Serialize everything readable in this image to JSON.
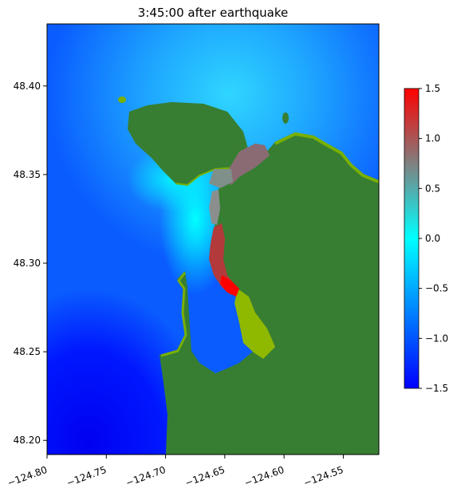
{
  "chart_data": {
    "type": "heatmap",
    "title": "3:45:00 after earthquake",
    "xlabel": "",
    "ylabel": "",
    "xlim": [
      -124.8,
      -124.52
    ],
    "ylim": [
      48.192,
      48.435
    ],
    "x_ticks": [
      -124.8,
      -124.75,
      -124.7,
      -124.65,
      -124.6,
      -124.55
    ],
    "x_tick_labels": [
      "−124.80",
      "−124.75",
      "−124.70",
      "−124.65",
      "−124.60",
      "−124.55"
    ],
    "y_ticks": [
      48.2,
      48.25,
      48.3,
      48.35,
      48.4
    ],
    "y_tick_labels": [
      "48.20",
      "48.25",
      "48.30",
      "48.35",
      "48.40"
    ],
    "colorbar": {
      "range": [
        -1.5,
        1.5
      ],
      "ticks": [
        -1.5,
        -1.0,
        -0.5,
        0.0,
        0.5,
        1.0,
        1.5
      ],
      "tick_labels": [
        "−1.5",
        "−1.0",
        "−0.5",
        "0.0",
        "0.5",
        "1.0",
        "1.5"
      ],
      "colors": [
        "#0000ff",
        "#00aaff",
        "#00ffff",
        "#808080",
        "#ff0000"
      ]
    },
    "colors": {
      "land": "#377e32",
      "shore_fringe": "#78b000",
      "deep_negative": "#0000ff",
      "zero": "#00ffff",
      "positive": "#ff0000"
    },
    "grid": false
  }
}
